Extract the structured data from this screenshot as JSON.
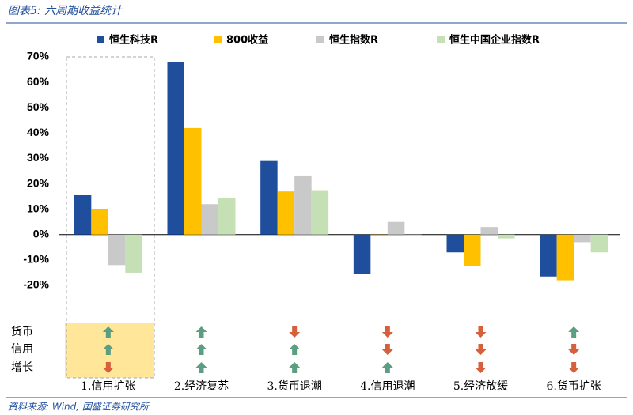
{
  "chart_data": {
    "type": "bar",
    "title": "图表5: 六周期收益统计",
    "source": "资料来源: Wind, 国盛证券研究所",
    "categories": [
      "1.信用扩张",
      "2.经济复苏",
      "3.货币退潮",
      "4.信用退潮",
      "5.经济放缓",
      "6.货币扩张"
    ],
    "series": [
      {
        "name": "恒生科技R",
        "color": "#1f4e9c",
        "values": [
          15.5,
          68,
          29,
          -15.5,
          -7,
          -16.5
        ]
      },
      {
        "name": "800收益",
        "color": "#ffc000",
        "values": [
          10,
          42,
          17,
          -0.5,
          -12.5,
          -18
        ]
      },
      {
        "name": "恒生指数R",
        "color": "#c9c9c9",
        "values": [
          -12,
          12,
          23,
          5,
          3,
          -3
        ]
      },
      {
        "name": "恒生中国企业指数R",
        "color": "#c5e0b4",
        "values": [
          -15,
          14.5,
          17.5,
          -0.5,
          -1.5,
          -7
        ]
      }
    ],
    "ylim": [
      -20,
      70
    ],
    "yticks": [
      {
        "value": -20,
        "label": "-20%"
      },
      {
        "value": -10,
        "label": "-10%"
      },
      {
        "value": 0,
        "label": "0%"
      },
      {
        "value": 10,
        "label": "10%"
      },
      {
        "value": 20,
        "label": "20%"
      },
      {
        "value": 30,
        "label": "30%"
      },
      {
        "value": 40,
        "label": "40%"
      },
      {
        "value": 50,
        "label": "50%"
      },
      {
        "value": 60,
        "label": "60%"
      },
      {
        "value": 70,
        "label": "70%"
      }
    ],
    "signal_rows": [
      "货币",
      "信用",
      "增长"
    ],
    "signals": [
      [
        "up",
        "up",
        "down"
      ],
      [
        "up",
        "up",
        "up"
      ],
      [
        "down",
        "up",
        "up"
      ],
      [
        "down",
        "down",
        "up"
      ],
      [
        "down",
        "down",
        "down"
      ],
      [
        "up",
        "down",
        "down"
      ]
    ],
    "signal_colors": {
      "up": "#5b9e82",
      "down": "#d65f3c"
    }
  }
}
